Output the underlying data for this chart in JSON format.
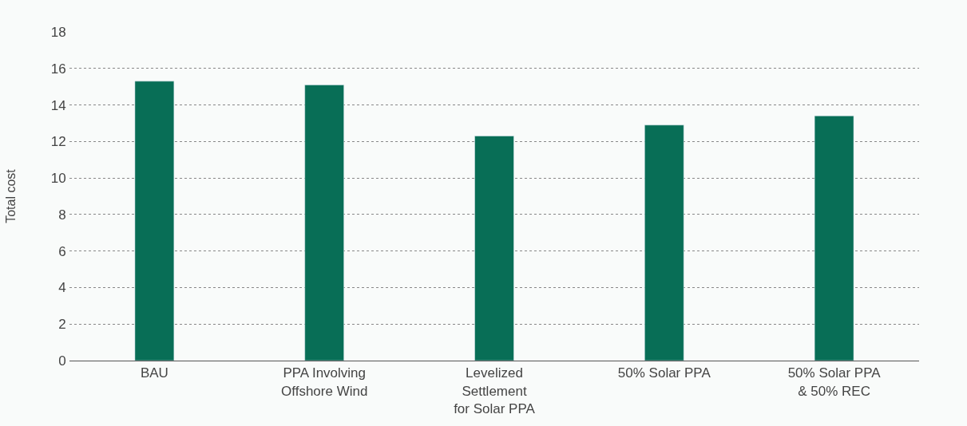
{
  "chart_data": {
    "type": "bar",
    "ylabel": "Total cost",
    "categories": [
      "BAU",
      "PPA Involving\nOffshore Wind",
      "Levelized\nSettlement\nfor Solar PPA",
      "50% Solar PPA",
      "50% Solar PPA\n& 50% REC"
    ],
    "values": [
      15.3,
      15.1,
      12.3,
      12.9,
      13.4
    ],
    "color": "#086e56",
    "ylim": [
      0,
      18
    ],
    "yticks": [
      0,
      2,
      4,
      6,
      8,
      10,
      12,
      14,
      16,
      18
    ],
    "grid": "y"
  }
}
